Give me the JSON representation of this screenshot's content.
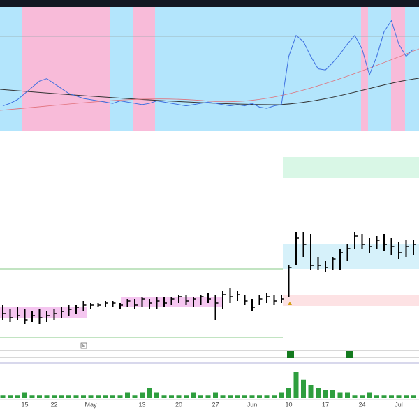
{
  "chart_data": {
    "type": "ohlc",
    "categories": [
      null,
      null,
      null,
      "15",
      null,
      null,
      null,
      "22",
      null,
      null,
      null,
      null,
      "May",
      null,
      null,
      null,
      null,
      null,
      null,
      "13",
      null,
      null,
      null,
      null,
      "20",
      null,
      null,
      null,
      null,
      "27",
      null,
      null,
      null,
      null,
      "Jun",
      null,
      null,
      null,
      null,
      "10",
      null,
      null,
      null,
      null,
      "17",
      null,
      null,
      null,
      null,
      "24",
      null,
      null,
      null,
      null,
      "Jul",
      null,
      null
    ],
    "high": [
      21,
      19,
      20,
      19,
      18,
      19,
      18,
      19,
      20,
      21,
      21,
      23,
      22,
      22,
      23,
      23,
      22,
      24,
      24,
      25,
      24,
      25,
      25,
      25,
      26,
      26,
      25,
      26,
      27,
      26,
      28,
      29,
      28,
      26,
      24,
      26,
      27,
      26,
      26,
      40,
      56,
      56,
      55,
      44,
      42,
      44,
      48,
      50,
      56,
      55,
      53,
      54,
      55,
      53,
      51,
      52,
      52
    ],
    "low": [
      14,
      13,
      14,
      12,
      13,
      12,
      13,
      14,
      15,
      16,
      17,
      18,
      19,
      20,
      20,
      20,
      19,
      20,
      19,
      20,
      19,
      19,
      20,
      21,
      22,
      21,
      20,
      21,
      22,
      14,
      19,
      22,
      23,
      21,
      18,
      21,
      22,
      21,
      22,
      25,
      40,
      44,
      38,
      38,
      37,
      38,
      38,
      42,
      48,
      48,
      46,
      48,
      47,
      45,
      43,
      44,
      45
    ],
    "close": [
      17,
      15,
      16,
      14,
      16,
      15,
      16,
      17,
      18,
      19,
      20,
      21,
      21,
      21,
      22,
      22,
      21,
      23,
      21,
      24,
      22,
      23,
      22,
      24,
      25,
      23,
      24,
      25,
      24,
      22,
      26,
      25,
      26,
      23,
      20,
      24,
      25,
      23,
      24,
      39,
      53,
      50,
      40,
      40,
      39,
      43,
      46,
      48,
      54,
      50,
      49,
      52,
      50,
      49,
      46,
      49,
      50
    ],
    "color": "#000000",
    "ylim": [
      0,
      100
    ],
    "volume": {
      "values": [
        1,
        1,
        1,
        2,
        1,
        1,
        1,
        1,
        1,
        1,
        1,
        1,
        1,
        1,
        1,
        1,
        1,
        2,
        1,
        2,
        4,
        2,
        1,
        1,
        1,
        1,
        2,
        1,
        1,
        2,
        1,
        1,
        1,
        1,
        1,
        1,
        1,
        1,
        2,
        4,
        10,
        7,
        5,
        4,
        3,
        3,
        2,
        2,
        1,
        1,
        2,
        1,
        1,
        1,
        1,
        1,
        1
      ],
      "ylim": [
        0,
        12
      ],
      "color": "#2e9e3e"
    },
    "indicator": {
      "values": [
        20,
        22,
        25,
        30,
        35,
        40,
        42,
        38,
        34,
        30,
        28,
        26,
        25,
        24,
        23,
        22,
        24,
        23,
        22,
        21,
        22,
        24,
        23,
        22,
        21,
        20,
        21,
        22,
        23,
        22,
        21,
        20,
        21,
        20,
        22,
        19,
        18,
        20,
        21,
        60,
        77,
        72,
        60,
        50,
        49,
        55,
        62,
        70,
        77,
        66,
        45,
        60,
        80,
        89,
        70,
        60,
        66
      ],
      "ylim": [
        0,
        100
      ],
      "color": "#3d6fe0"
    },
    "marker": "E"
  }
}
